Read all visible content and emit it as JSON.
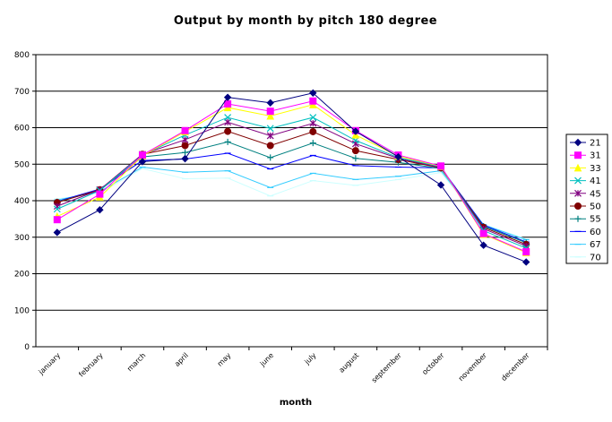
{
  "chart_data": {
    "type": "line",
    "title": "Output by month by pitch  180 degree",
    "xlabel": "month",
    "ylabel": "",
    "ylim": [
      0,
      800
    ],
    "yticks": [
      0,
      100,
      200,
      300,
      400,
      500,
      600,
      700,
      800
    ],
    "grid": true,
    "legend_placement": "right",
    "categories": [
      "january",
      "february",
      "march",
      "april",
      "may",
      "june",
      "july",
      "august",
      "september",
      "october",
      "november",
      "december"
    ],
    "series": [
      {
        "name": "21",
        "color": "#000080",
        "marker": "diamond",
        "values": [
          313,
          375,
          507,
          515,
          683,
          668,
          695,
          590,
          520,
          443,
          278,
          232
        ]
      },
      {
        "name": "31",
        "color": "#FF00FF",
        "marker": "square",
        "values": [
          348,
          418,
          525,
          592,
          665,
          645,
          673,
          592,
          525,
          495,
          310,
          260
        ]
      },
      {
        "name": "33",
        "color": "#FFFF00",
        "marker": "triangle",
        "values": [
          357,
          410,
          523,
          589,
          655,
          632,
          663,
          580,
          522,
          494,
          308,
          258
        ]
      },
      {
        "name": "41",
        "color": "#00C0C0",
        "marker": "x",
        "values": [
          377,
          428,
          525,
          580,
          628,
          598,
          628,
          565,
          518,
          493,
          318,
          270
        ]
      },
      {
        "name": "45",
        "color": "#800080",
        "marker": "star",
        "values": [
          385,
          430,
          527,
          567,
          615,
          578,
          612,
          556,
          516,
          491,
          323,
          276
        ]
      },
      {
        "name": "50",
        "color": "#800000",
        "marker": "circle",
        "values": [
          395,
          430,
          527,
          551,
          590,
          551,
          589,
          537,
          513,
          490,
          327,
          280
        ]
      },
      {
        "name": "55",
        "color": "#008080",
        "marker": "plus",
        "values": [
          397,
          428,
          520,
          532,
          561,
          518,
          558,
          516,
          505,
          488,
          330,
          285
        ]
      },
      {
        "name": "60",
        "color": "#0000FF",
        "marker": "dash",
        "values": [
          398,
          432,
          510,
          514,
          530,
          487,
          524,
          496,
          492,
          490,
          333,
          287
        ]
      },
      {
        "name": "67",
        "color": "#33CCFF",
        "marker": "dash",
        "values": [
          402,
          425,
          492,
          478,
          482,
          436,
          475,
          458,
          467,
          482,
          334,
          293
        ]
      },
      {
        "name": "70",
        "color": "#CCFFFF",
        "marker": "dash",
        "values": [
          405,
          421,
          488,
          460,
          462,
          413,
          455,
          442,
          458,
          477,
          335,
          295
        ]
      }
    ]
  }
}
